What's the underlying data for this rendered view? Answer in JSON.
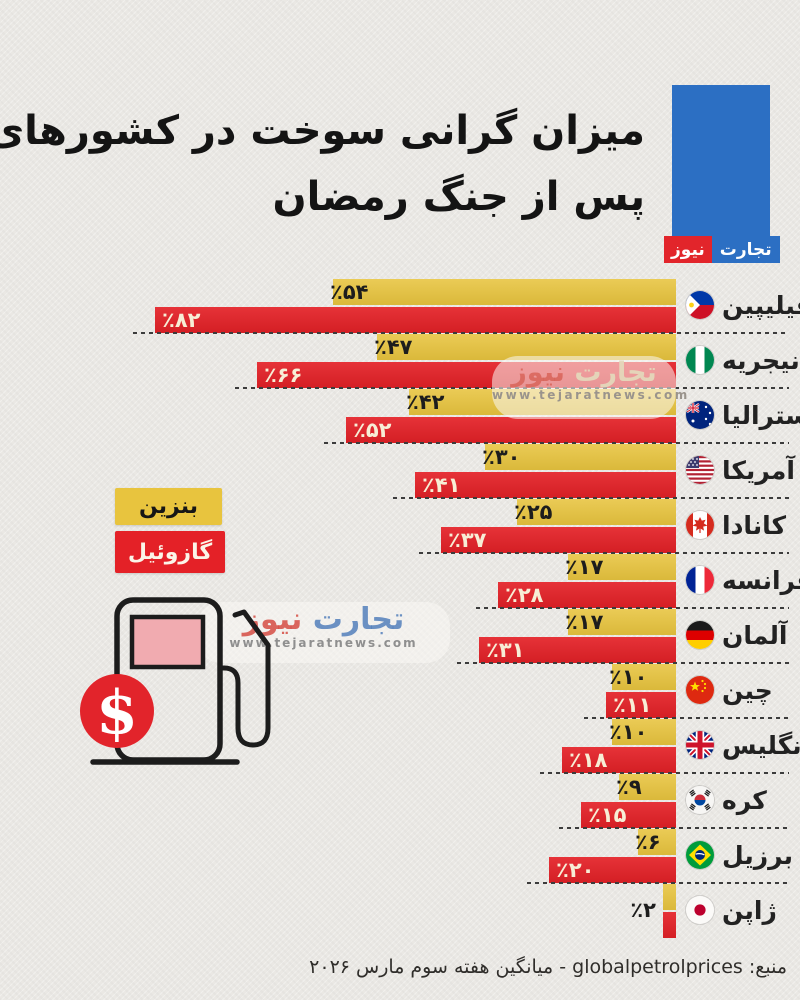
{
  "title": {
    "line1": "میزان گرانی سوخت در کشورهای گوناگون",
    "line2": "پس از جنگ رمضان"
  },
  "logo": {
    "brand_primary": "تجارت",
    "brand_secondary": "نیوز"
  },
  "legend": {
    "gasoline": "بنزین",
    "diesel": "گازوئیل"
  },
  "watermark": {
    "brand_first": "تجارت",
    "brand_second": "نیوز",
    "url": "www.tejaratnews.com"
  },
  "source": {
    "text": "منبع: globalpetrolprices - میانگین هفته سوم مارس ۲۰۲۶"
  },
  "colors": {
    "gasoline_bar": "#e8c43e",
    "diesel_bar": "#e42127",
    "background": "#eae8e4",
    "logo_blue": "#2c6fc3",
    "logo_red": "#e2252b",
    "dollar_circle": "#e2242b"
  },
  "chart_data": {
    "type": "bar",
    "orientation": "horizontal",
    "unit": "percent increase",
    "title": "میزان گرانی سوخت در کشورهای گوناگون پس از جنگ رمضان",
    "legend_position": "left",
    "series_names": [
      "بنزین",
      "گازوئیل"
    ],
    "max_value": 82,
    "rows": [
      {
        "country": "فیلیپین",
        "flag": "philippines",
        "gasoline": 54,
        "diesel": 82,
        "gasoline_label": "٪۵۴",
        "diesel_label": "٪۸۲"
      },
      {
        "country": "نیجریه",
        "flag": "nigeria",
        "gasoline": 47,
        "diesel": 66,
        "gasoline_label": "٪۴۷",
        "diesel_label": "٪۶۶"
      },
      {
        "country": "استرالیا",
        "flag": "australia",
        "gasoline": 42,
        "diesel": 52,
        "gasoline_label": "٪۴۲",
        "diesel_label": "٪۵۲"
      },
      {
        "country": "آمریکا",
        "flag": "usa",
        "gasoline": 30,
        "diesel": 41,
        "gasoline_label": "٪۳۰",
        "diesel_label": "٪۴۱"
      },
      {
        "country": "کانادا",
        "flag": "canada",
        "gasoline": 25,
        "diesel": 37,
        "gasoline_label": "٪۲۵",
        "diesel_label": "٪۳۷"
      },
      {
        "country": "فرانسه",
        "flag": "france",
        "gasoline": 17,
        "diesel": 28,
        "gasoline_label": "٪۱۷",
        "diesel_label": "٪۲۸"
      },
      {
        "country": "آلمان",
        "flag": "germany",
        "gasoline": 17,
        "diesel": 31,
        "gasoline_label": "٪۱۷",
        "diesel_label": "٪۳۱"
      },
      {
        "country": "چین",
        "flag": "china",
        "gasoline": 10,
        "diesel": 11,
        "gasoline_label": "٪۱۰",
        "diesel_label": "٪۱۱"
      },
      {
        "country": "انگلیس",
        "flag": "uk",
        "gasoline": 10,
        "diesel": 18,
        "gasoline_label": "٪۱۰",
        "diesel_label": "٪۱۸"
      },
      {
        "country": "کره",
        "flag": "south-korea",
        "gasoline": 9,
        "diesel": 15,
        "gasoline_label": "٪۹",
        "diesel_label": "٪۱۵"
      },
      {
        "country": "برزیل",
        "flag": "brazil",
        "gasoline": 6,
        "diesel": 20,
        "gasoline_label": "٪۶",
        "diesel_label": "٪۲۰"
      },
      {
        "country": "ژاپن",
        "flag": "japan",
        "gasoline": 2,
        "diesel": 2,
        "gasoline_label": "",
        "diesel_label": "",
        "shared_label": "٪۲"
      }
    ]
  }
}
